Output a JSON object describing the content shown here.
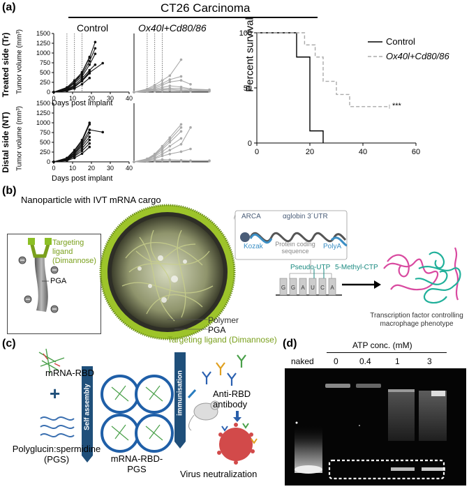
{
  "panels": {
    "a": {
      "label": "(a)",
      "title": "CT26 Carcinoma",
      "ylabel_treated": "Treated side (Tr)",
      "ylabel_distal": "Distal side (NT)",
      "tumor_ylabel": "Tumor volume (mm³)",
      "xlabel": "Days post implant",
      "group_control": "Control",
      "group_treated": "Ox40l+Cd80/86",
      "survival_ylabel": "Percent survival",
      "significance": "***"
    },
    "b": {
      "label": "(b)",
      "title": "Nanoparticle with IVT mRNA cargo",
      "targeting_ligand": "Targeting ligand (Dimannose)",
      "targeting_ligand_l1": "Targeting",
      "targeting_ligand_l2": "ligand",
      "targeting_ligand_l3": "(Dimannose)",
      "pga": "PGA",
      "polymer": "Polymer",
      "arca": "ARCA",
      "kozak": "Kozak",
      "coding_l1": "Protein coding",
      "coding_l2": "sequence",
      "utr": "αglobin 3´UTR",
      "polya": "PolyA",
      "pseudo_utp": "Pseudo-UTP",
      "methyl_ctp": "5-Methyl-CTP",
      "bases": [
        "G",
        "G",
        "A",
        "U",
        "C",
        "A"
      ],
      "tf_l1": "Transcription factor controlling",
      "tf_l2": "macrophage phenotype"
    },
    "c": {
      "label": "(c)",
      "mrna_rbd": "mRNA-RBD",
      "plus": "+",
      "pgs_l1": "Polyglucin:spermidine",
      "pgs_l2": "(PGS)",
      "self_assembly": "Self assembly",
      "complex_l1": "mRNA-RBD-",
      "complex_l2": "PGS",
      "immunisation": "immunisation",
      "antibody_l1": "Anti-RBD",
      "antibody_l2": "antibody",
      "virus": "Virus neutralization"
    },
    "d": {
      "label": "(d)",
      "atp_title": "ATP conc. (mM)",
      "lanes": [
        "naked",
        "0",
        "0.4",
        "1",
        "3"
      ]
    }
  },
  "chart_data": [
    {
      "type": "line",
      "panel": "a-treated-control",
      "xlabel": "Days post implant",
      "ylabel": "Tumor volume (mm³)",
      "xlim": [
        0,
        40
      ],
      "ylim": [
        0,
        1500
      ],
      "xticks": [
        0,
        10,
        20,
        30,
        40
      ],
      "yticks": [
        0,
        250,
        500,
        750,
        1000,
        1250,
        1500
      ],
      "color": "#111111",
      "series": [
        {
          "x": [
            0,
            7,
            11,
            15,
            19,
            22
          ],
          "y": [
            0,
            120,
            300,
            500,
            880,
            1280
          ]
        },
        {
          "x": [
            0,
            7,
            11,
            15,
            19,
            22
          ],
          "y": [
            0,
            100,
            260,
            450,
            790,
            1120
          ]
        },
        {
          "x": [
            0,
            7,
            11,
            15,
            19,
            22
          ],
          "y": [
            0,
            80,
            230,
            400,
            700,
            980
          ]
        },
        {
          "x": [
            0,
            7,
            11,
            15,
            19
          ],
          "y": [
            0,
            90,
            250,
            510,
            900
          ]
        },
        {
          "x": [
            0,
            7,
            11,
            15,
            19,
            22
          ],
          "y": [
            0,
            70,
            180,
            350,
            560,
            700
          ]
        },
        {
          "x": [
            0,
            7,
            11,
            15,
            19,
            26
          ],
          "y": [
            0,
            60,
            150,
            300,
            500,
            740
          ]
        },
        {
          "x": [
            0,
            7,
            11,
            15,
            19
          ],
          "y": [
            0,
            50,
            140,
            280,
            480
          ]
        },
        {
          "x": [
            0,
            7,
            11,
            15,
            19
          ],
          "y": [
            0,
            40,
            120,
            300,
            520
          ]
        },
        {
          "x": [
            0,
            7,
            11,
            15,
            19
          ],
          "y": [
            0,
            30,
            90,
            200,
            360
          ]
        }
      ],
      "dotted_vlines": [
        7,
        11,
        15
      ]
    },
    {
      "type": "line",
      "panel": "a-treated-ox40l",
      "xlim": [
        0,
        40
      ],
      "ylim": [
        0,
        1500
      ],
      "color": "#aaaaaa",
      "series": [
        {
          "x": [
            0,
            7,
            11,
            15,
            19,
            25
          ],
          "y": [
            0,
            80,
            180,
            300,
            420,
            830
          ]
        },
        {
          "x": [
            0,
            7,
            11,
            15,
            19,
            25
          ],
          "y": [
            0,
            60,
            140,
            220,
            320,
            400
          ]
        },
        {
          "x": [
            0,
            7,
            11,
            15,
            19,
            25,
            30
          ],
          "y": [
            0,
            50,
            100,
            180,
            260,
            300,
            200
          ]
        },
        {
          "x": [
            0,
            7,
            11,
            15,
            19,
            25,
            30,
            40
          ],
          "y": [
            0,
            40,
            80,
            120,
            160,
            130,
            80,
            60
          ]
        },
        {
          "x": [
            0,
            7,
            11,
            15,
            19,
            25,
            30,
            40
          ],
          "y": [
            0,
            30,
            60,
            80,
            100,
            90,
            60,
            50
          ]
        },
        {
          "x": [
            0,
            7,
            11,
            15,
            19,
            25,
            30,
            40
          ],
          "y": [
            0,
            20,
            40,
            60,
            70,
            50,
            40,
            30
          ]
        },
        {
          "x": [
            0,
            7,
            11,
            15,
            19,
            25,
            30,
            40
          ],
          "y": [
            0,
            10,
            20,
            30,
            40,
            30,
            20,
            20
          ]
        }
      ],
      "dotted_vlines": [
        7,
        11,
        15
      ]
    },
    {
      "type": "line",
      "panel": "a-distal-control",
      "xlabel": "Days post implant",
      "ylabel": "Tumor volume (mm³)",
      "xlim": [
        0,
        40
      ],
      "ylim": [
        0,
        1500
      ],
      "xticks": [
        0,
        10,
        20,
        30,
        40
      ],
      "yticks": [
        0,
        250,
        500,
        750,
        1000,
        1250,
        1500
      ],
      "color": "#111111",
      "series": [
        {
          "x": [
            0,
            7,
            11,
            15,
            19
          ],
          "y": [
            0,
            100,
            300,
            560,
            1000
          ]
        },
        {
          "x": [
            0,
            7,
            11,
            15,
            19
          ],
          "y": [
            0,
            90,
            280,
            520,
            960
          ]
        },
        {
          "x": [
            0,
            7,
            11,
            15,
            19,
            26
          ],
          "y": [
            0,
            80,
            240,
            480,
            820,
            760
          ]
        },
        {
          "x": [
            0,
            7,
            11,
            15,
            19
          ],
          "y": [
            0,
            70,
            220,
            440,
            740
          ]
        },
        {
          "x": [
            0,
            7,
            11,
            15,
            19
          ],
          "y": [
            0,
            60,
            190,
            400,
            640
          ]
        },
        {
          "x": [
            0,
            7,
            11,
            15,
            19
          ],
          "y": [
            0,
            50,
            160,
            340,
            560
          ]
        },
        {
          "x": [
            0,
            7,
            11,
            15,
            19
          ],
          "y": [
            0,
            40,
            140,
            280,
            470
          ]
        },
        {
          "x": [
            0,
            7,
            11,
            15,
            19
          ],
          "y": [
            0,
            30,
            100,
            210,
            380
          ]
        }
      ]
    },
    {
      "type": "line",
      "panel": "a-distal-ox40l",
      "xlim": [
        0,
        40
      ],
      "ylim": [
        0,
        1500
      ],
      "color": "#aaaaaa",
      "series": [
        {
          "x": [
            0,
            7,
            11,
            15,
            19,
            25
          ],
          "y": [
            0,
            80,
            200,
            400,
            620,
            960
          ]
        },
        {
          "x": [
            0,
            7,
            11,
            15,
            19,
            25
          ],
          "y": [
            0,
            70,
            180,
            360,
            560,
            880
          ]
        },
        {
          "x": [
            0,
            7,
            11,
            15,
            19,
            25
          ],
          "y": [
            0,
            60,
            160,
            320,
            500,
            780
          ]
        },
        {
          "x": [
            0,
            7,
            11,
            15,
            19,
            25
          ],
          "y": [
            0,
            50,
            140,
            260,
            400,
            600
          ]
        },
        {
          "x": [
            0,
            7,
            11,
            15,
            19,
            25,
            30
          ],
          "y": [
            0,
            40,
            100,
            200,
            300,
            450,
            880
          ]
        },
        {
          "x": [
            0,
            7,
            11,
            15,
            19,
            25,
            30
          ],
          "y": [
            0,
            30,
            80,
            150,
            200,
            260,
            330
          ]
        },
        {
          "x": [
            0,
            7,
            11,
            15,
            19,
            25,
            30,
            40
          ],
          "y": [
            0,
            20,
            40,
            60,
            50,
            40,
            30,
            30
          ]
        },
        {
          "x": [
            0,
            7,
            11,
            15,
            19,
            25,
            30,
            40
          ],
          "y": [
            0,
            10,
            20,
            30,
            20,
            20,
            20,
            20
          ]
        }
      ]
    },
    {
      "type": "line",
      "panel": "a-survival",
      "ylabel": "Percent survival",
      "xlim": [
        0,
        60
      ],
      "ylim": [
        0,
        100
      ],
      "xticks": [
        0,
        20,
        40,
        60
      ],
      "yticks": [
        0,
        50,
        100
      ],
      "legend": "top-right",
      "series": [
        {
          "name": "Control",
          "style": "solid",
          "color": "#000000",
          "x": [
            0,
            15,
            15,
            20,
            20,
            22,
            22,
            25,
            25
          ],
          "y": [
            100,
            100,
            78,
            78,
            11,
            11,
            11,
            11,
            0
          ]
        },
        {
          "name": "Ox40l+Cd80/86",
          "style": "dashed",
          "color": "#aaaaaa",
          "x": [
            0,
            18,
            18,
            22,
            22,
            25,
            25,
            30,
            30,
            35,
            35,
            50
          ],
          "y": [
            100,
            100,
            89,
            89,
            78,
            78,
            56,
            56,
            44,
            44,
            33,
            33
          ]
        }
      ]
    }
  ]
}
